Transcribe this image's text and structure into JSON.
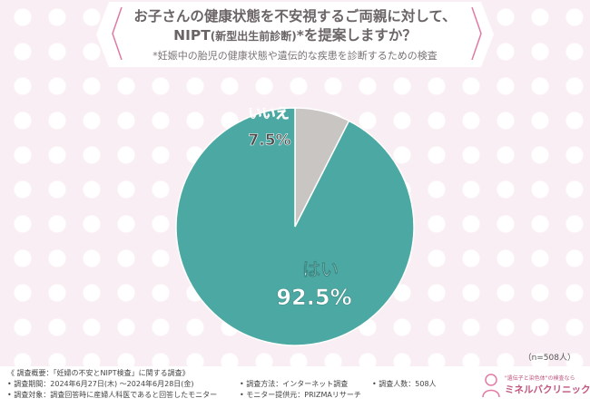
{
  "title": {
    "line1": "お子さんの健康状態を不安視するご両親に対して、",
    "line2_a": "NIPT",
    "line2_b": "(新型出生前診断)",
    "line2_c": "*を提案しますか？",
    "note": "*妊娠中の胎児の健康状態や遺伝的な疾患を診断するための検査"
  },
  "sample_size": "（n=508人）",
  "chart_data": {
    "type": "pie",
    "labels": [
      "いいえ",
      "はい"
    ],
    "values": [
      7.5,
      92.5
    ],
    "value_labels": [
      "7.5%",
      "92.5%"
    ],
    "colors": [
      "#c9c5c3",
      "#4ca8a3"
    ],
    "start": "12 o'clock, clockwise from いいえ"
  },
  "footer": {
    "overview": "《 調査概要：「妊婦の不安とNIPT検査」に関する調査》",
    "period": "• 調査期間：2024年6月27日(木) ～2024年6月28日(金)",
    "method": "• 調査方法：インターネット調査",
    "count": "• 調査人数：508人",
    "target": "• 調査対象：調査回答時に産婦人科医であると回答したモニター",
    "provider": "• モニター提供元：PRIZMAリサーチ"
  },
  "logo": {
    "tagline": "\"遺伝子と染色体\"の検査なら",
    "name": "ミネルバクリニック"
  }
}
